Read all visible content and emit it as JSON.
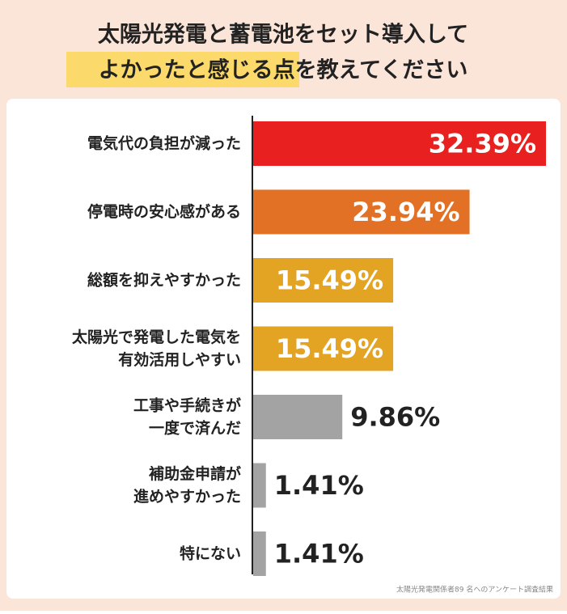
{
  "chart_data": {
    "type": "bar",
    "orientation": "horizontal",
    "title": [
      "太陽光発電と蓄電池をセット導入して",
      "よかったと感じる点を教えてください"
    ],
    "categories": [
      "電気代の負担が減った",
      "停電時の安心感がある",
      "総額を抑えやすかった",
      "太陽光で発電した電気を\n有効活用しやすい",
      "工事や手続きが\n一度で済んだ",
      "補助金申請が\n進めやすかった",
      "特にない"
    ],
    "values": [
      32.39,
      23.94,
      15.49,
      15.49,
      9.86,
      1.41,
      1.41
    ],
    "value_labels": [
      "32.39%",
      "23.94%",
      "15.49%",
      "15.49%",
      "9.86%",
      "1.41%",
      "1.41%"
    ],
    "colors": [
      "#e8201f",
      "#e37125",
      "#e3a323",
      "#e3a323",
      "#a3a3a3",
      "#a3a3a3",
      "#a3a3a3"
    ],
    "source": "太陽光発電関係者89 名へのアンケート調査結果"
  }
}
